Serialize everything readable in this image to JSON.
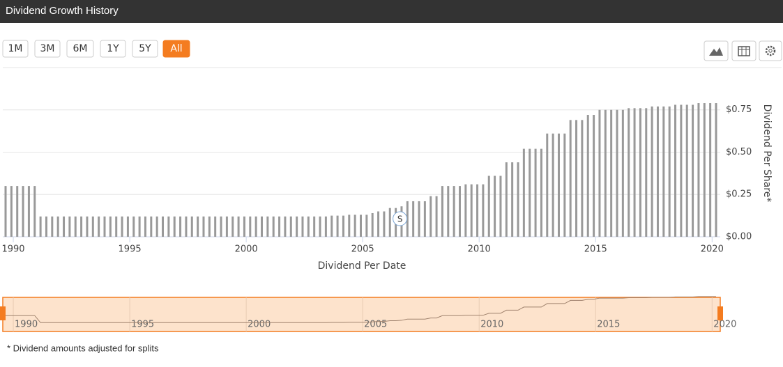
{
  "header": {
    "title": "Dividend Growth History"
  },
  "range_buttons": [
    "1M",
    "3M",
    "6M",
    "1Y",
    "5Y",
    "All"
  ],
  "selected_range": "All",
  "footnote": "* Dividend amounts adjusted for splits",
  "chart_data": {
    "type": "bar",
    "x_label": "Dividend Per Date",
    "y_label": "Dividend Per Share*",
    "color": "#999999",
    "grid": true,
    "y_axis_side": "right",
    "xlim": [
      1989.55,
      2020.35
    ],
    "xticks": [
      1990,
      1995,
      2000,
      2005,
      2010,
      2015,
      2020
    ],
    "ylim": [
      0,
      0.93
    ],
    "yticks": [
      {
        "value": 0,
        "label": "$0.00"
      },
      {
        "value": 0.25,
        "label": "$0.25"
      },
      {
        "value": 0.5,
        "label": "$0.50"
      },
      {
        "value": 0.75,
        "label": "$0.75"
      }
    ],
    "annotations": [
      {
        "text": "S",
        "x": 2006.6
      }
    ],
    "navigator": {
      "color": "#f47c20",
      "fill": "#fde3cc",
      "line_color": "#a0836e"
    },
    "x": [
      1989.67,
      1989.92,
      1990.17,
      1990.42,
      1990.67,
      1990.92,
      1991.17,
      1991.42,
      1991.67,
      1991.92,
      1992.17,
      1992.42,
      1992.67,
      1992.92,
      1993.17,
      1993.42,
      1993.67,
      1993.92,
      1994.17,
      1994.42,
      1994.67,
      1994.92,
      1995.17,
      1995.42,
      1995.67,
      1995.92,
      1996.17,
      1996.42,
      1996.67,
      1996.92,
      1997.17,
      1997.42,
      1997.67,
      1997.92,
      1998.17,
      1998.42,
      1998.67,
      1998.92,
      1999.17,
      1999.42,
      1999.67,
      1999.92,
      2000.17,
      2000.42,
      2000.67,
      2000.92,
      2001.17,
      2001.42,
      2001.67,
      2001.92,
      2002.17,
      2002.42,
      2002.67,
      2002.92,
      2003.17,
      2003.42,
      2003.67,
      2003.92,
      2004.17,
      2004.42,
      2004.67,
      2004.92,
      2005.17,
      2005.42,
      2005.67,
      2005.92,
      2006.17,
      2006.42,
      2006.67,
      2006.92,
      2007.17,
      2007.42,
      2007.67,
      2007.92,
      2008.17,
      2008.42,
      2008.67,
      2008.92,
      2009.17,
      2009.42,
      2009.67,
      2009.92,
      2010.17,
      2010.42,
      2010.67,
      2010.92,
      2011.17,
      2011.42,
      2011.67,
      2011.92,
      2012.17,
      2012.42,
      2012.67,
      2012.92,
      2013.17,
      2013.42,
      2013.67,
      2013.92,
      2014.17,
      2014.42,
      2014.67,
      2014.92,
      2015.17,
      2015.42,
      2015.67,
      2015.92,
      2016.17,
      2016.42,
      2016.67,
      2016.92,
      2017.17,
      2017.42,
      2017.67,
      2017.92,
      2018.17,
      2018.42,
      2018.67,
      2018.92,
      2019.17,
      2019.42,
      2019.67,
      2019.92,
      2020.17
    ],
    "values": [
      0.3,
      0.3,
      0.3,
      0.3,
      0.3,
      0.3,
      0.12,
      0.12,
      0.12,
      0.12,
      0.12,
      0.12,
      0.12,
      0.12,
      0.12,
      0.12,
      0.12,
      0.12,
      0.12,
      0.12,
      0.12,
      0.12,
      0.12,
      0.12,
      0.12,
      0.12,
      0.12,
      0.12,
      0.12,
      0.12,
      0.12,
      0.12,
      0.12,
      0.12,
      0.12,
      0.12,
      0.12,
      0.12,
      0.12,
      0.12,
      0.12,
      0.12,
      0.12,
      0.12,
      0.12,
      0.12,
      0.12,
      0.12,
      0.12,
      0.12,
      0.12,
      0.12,
      0.12,
      0.12,
      0.12,
      0.12,
      0.125,
      0.125,
      0.125,
      0.13,
      0.13,
      0.13,
      0.13,
      0.14,
      0.15,
      0.15,
      0.17,
      0.17,
      0.18,
      0.21,
      0.21,
      0.21,
      0.21,
      0.24,
      0.24,
      0.3,
      0.3,
      0.3,
      0.3,
      0.31,
      0.31,
      0.31,
      0.31,
      0.36,
      0.36,
      0.36,
      0.44,
      0.44,
      0.44,
      0.52,
      0.52,
      0.52,
      0.52,
      0.61,
      0.61,
      0.61,
      0.61,
      0.69,
      0.69,
      0.69,
      0.72,
      0.72,
      0.75,
      0.75,
      0.75,
      0.75,
      0.75,
      0.76,
      0.76,
      0.76,
      0.76,
      0.77,
      0.77,
      0.77,
      0.77,
      0.78,
      0.78,
      0.78,
      0.78,
      0.79,
      0.79,
      0.79,
      0.79
    ]
  }
}
